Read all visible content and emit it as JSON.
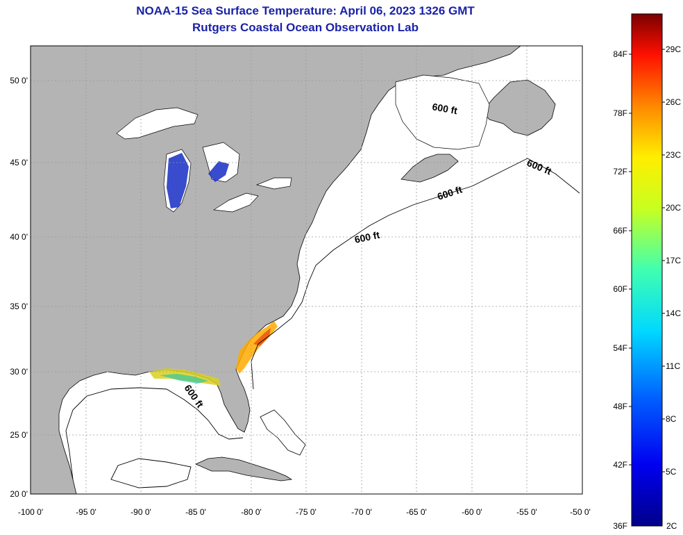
{
  "header": {
    "title": "NOAA-15 Sea Surface Temperature:  April 06, 2023 1326 GMT",
    "subtitle": "Rutgers Coastal Ocean Observation Lab"
  },
  "map": {
    "lon_labels": [
      "-100 0'",
      "-95 0'",
      "-90 0'",
      "-85 0'",
      "-80 0'",
      "-75 0'",
      "-70 0'",
      "-65 0'",
      "-60 0'",
      "-55 0'",
      "-50 0'"
    ],
    "lat_labels": [
      "50 0'",
      "45 0'",
      "40 0'",
      "35 0'",
      "30 0'",
      "25 0'",
      "20 0'"
    ],
    "lon_range": [
      -100,
      -50
    ],
    "lat_range": [
      20,
      52.5
    ],
    "contour_labels": [
      "600 ft",
      "600 ft",
      "600 ft",
      "600 ft",
      "600 ft"
    ],
    "colors": {
      "land": "#b4b4b4",
      "ocean": "#ffffff",
      "grid": "#9a9a9a"
    }
  },
  "colorbar": {
    "fahrenheit_labels": [
      "84F",
      "78F",
      "72F",
      "66F",
      "60F",
      "54F",
      "48F",
      "42F",
      "36F"
    ],
    "celsius_labels": [
      "29C",
      "26C",
      "23C",
      "20C",
      "17C",
      "14C",
      "11C",
      "8C",
      "5C",
      "2C"
    ],
    "range_c": [
      2,
      31
    ]
  }
}
